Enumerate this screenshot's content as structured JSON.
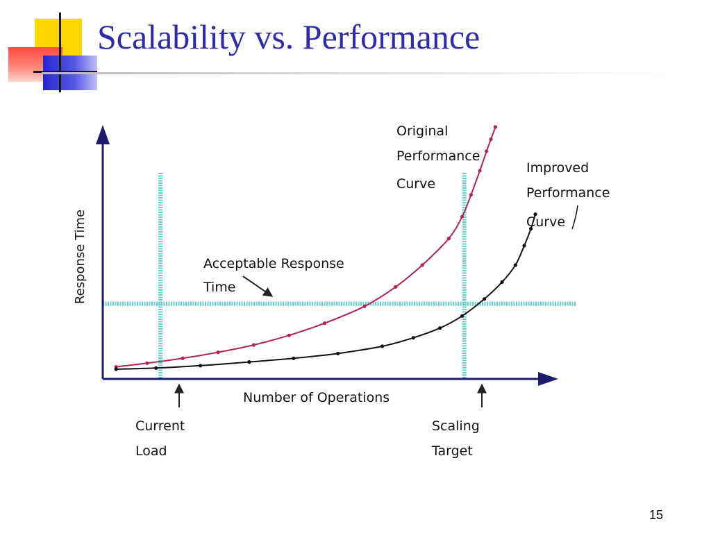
{
  "slide": {
    "title": "Scalability vs. Performance",
    "page_number": "15"
  },
  "colors": {
    "title": "#2b2bb0",
    "axis": "#1c1c6e",
    "original_curve": "#b5224f",
    "improved_curve": "#111111",
    "reference_lines": "#5ccdcd",
    "deco_yellow": "#ffd700",
    "deco_red": "#ff4a3d",
    "deco_blue": "#2626d0"
  },
  "chart_data": {
    "type": "line",
    "title": "",
    "xlabel": "Number of Operations",
    "ylabel": "Response Time",
    "xlim": [
      0,
      10
    ],
    "ylim": [
      0,
      10
    ],
    "ticks": "none",
    "grid": false,
    "series": [
      {
        "name": "Original Performance Curve",
        "label_lines": [
          "Original",
          "Performance",
          "Curve"
        ],
        "x": [
          0.3,
          1.0,
          1.8,
          2.6,
          3.4,
          4.2,
          5.0,
          5.9,
          6.6,
          7.2,
          7.8,
          8.1,
          8.3,
          8.5,
          8.65,
          8.75,
          8.85
        ],
        "y": [
          0.5,
          0.65,
          0.85,
          1.1,
          1.4,
          1.8,
          2.3,
          3.0,
          3.8,
          4.7,
          5.8,
          6.7,
          7.6,
          8.6,
          9.4,
          9.9,
          10.4
        ]
      },
      {
        "name": "Improved Performance Curve",
        "label_lines": [
          "Improved",
          "Performance",
          "Curve"
        ],
        "x": [
          0.3,
          1.2,
          2.2,
          3.3,
          4.3,
          5.3,
          6.3,
          7.0,
          7.6,
          8.1,
          8.6,
          9.0,
          9.3,
          9.5,
          9.65,
          9.75
        ],
        "y": [
          0.4,
          0.45,
          0.55,
          0.7,
          0.85,
          1.05,
          1.35,
          1.7,
          2.1,
          2.6,
          3.3,
          4.0,
          4.7,
          5.5,
          6.2,
          6.8
        ]
      }
    ],
    "reference_lines": [
      {
        "orientation": "horizontal",
        "value": 3.1,
        "label_lines": [
          "Acceptable Response",
          "Time"
        ]
      },
      {
        "orientation": "vertical",
        "value": 1.3,
        "label_lines": [
          "Current",
          "Load"
        ]
      },
      {
        "orientation": "vertical",
        "value": 8.15,
        "label_lines": [
          "Scaling",
          "Target"
        ]
      }
    ]
  }
}
